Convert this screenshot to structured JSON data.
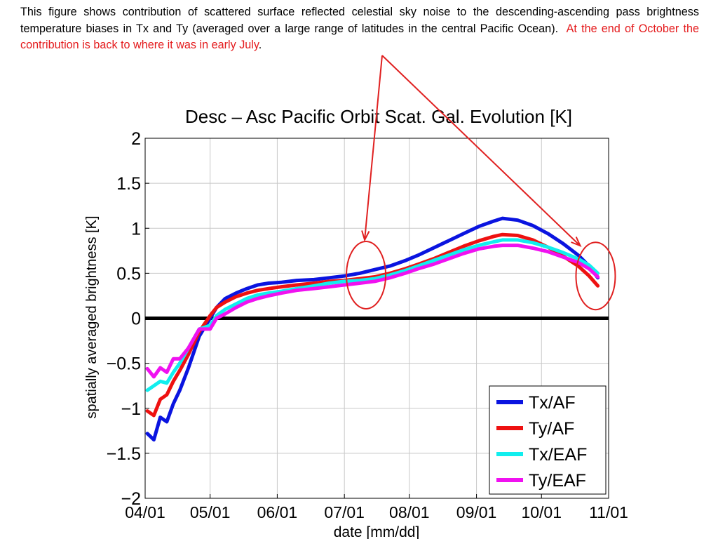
{
  "caption": {
    "text": "This figure shows contribution of scattered surface reflected celestial sky noise to the descending-ascending pass brightness temperature biases in Tx and Ty (averaged over a large range of latitudes in the central Pacific Ocean).",
    "highlight": "At the end of October the contribution is back to where it was in early July",
    "end": ".",
    "highlight_color": "#e41a1c"
  },
  "annotation": {
    "color": "#e02020",
    "circles": [
      {
        "x": "07/11",
        "y": 0.48
      },
      {
        "x": "10/26",
        "y": 0.47
      }
    ]
  },
  "chart_data": {
    "type": "line",
    "title": "Desc – Asc Pacific Orbit Scat. Gal. Evolution [K]",
    "xlabel": "date [mm/dd]",
    "ylabel": "spatially averaged brightness [K]",
    "xticks": [
      "04/01",
      "05/01",
      "06/01",
      "07/01",
      "08/01",
      "09/01",
      "10/01",
      "11/01"
    ],
    "xlim": [
      "04/01",
      "11/01"
    ],
    "yticks": [
      -2,
      -1.5,
      -1,
      -0.5,
      0,
      0.5,
      1,
      1.5,
      2
    ],
    "ytick_labels": [
      "−2",
      "−1.5",
      "−1",
      "−0.5",
      "0",
      "0.5",
      "1",
      "1.5",
      "2"
    ],
    "ylim": [
      -2,
      2
    ],
    "grid": true,
    "legend_position": "bottom-right",
    "reference_line": {
      "y": 0,
      "color": "#000000"
    },
    "x": [
      "04/02",
      "04/05",
      "04/08",
      "04/11",
      "04/14",
      "04/17",
      "04/21",
      "04/26",
      "05/01",
      "05/04",
      "05/08",
      "05/13",
      "05/18",
      "05/23",
      "05/28",
      "06/03",
      "06/10",
      "06/18",
      "06/25",
      "07/01",
      "07/08",
      "07/15",
      "07/22",
      "07/29",
      "08/05",
      "08/12",
      "08/19",
      "08/26",
      "09/02",
      "09/09",
      "09/13",
      "09/20",
      "09/27",
      "10/04",
      "10/11",
      "10/18",
      "10/23",
      "10/27"
    ],
    "series": [
      {
        "name": "Tx/AF",
        "color": "#0a14e0",
        "values": [
          -1.28,
          -1.35,
          -1.1,
          -1.15,
          -0.95,
          -0.8,
          -0.55,
          -0.2,
          0.0,
          0.12,
          0.22,
          0.28,
          0.33,
          0.37,
          0.39,
          0.4,
          0.42,
          0.43,
          0.45,
          0.47,
          0.5,
          0.54,
          0.58,
          0.64,
          0.7,
          0.78,
          0.86,
          0.94,
          1.02,
          1.08,
          1.11,
          1.09,
          1.03,
          0.94,
          0.83,
          0.7,
          0.58,
          0.45
        ]
      },
      {
        "name": "Ty/AF",
        "color": "#ee1111",
        "values": [
          -1.03,
          -1.08,
          -0.9,
          -0.85,
          -0.7,
          -0.58,
          -0.4,
          -0.15,
          0.03,
          0.12,
          0.18,
          0.24,
          0.28,
          0.31,
          0.33,
          0.35,
          0.37,
          0.39,
          0.41,
          0.42,
          0.44,
          0.46,
          0.5,
          0.55,
          0.6,
          0.66,
          0.73,
          0.8,
          0.86,
          0.91,
          0.93,
          0.92,
          0.87,
          0.79,
          0.69,
          0.58,
          0.47,
          0.36
        ]
      },
      {
        "name": "Tx/EAF",
        "color": "#11eeee",
        "values": [
          -0.8,
          -0.75,
          -0.7,
          -0.72,
          -0.6,
          -0.5,
          -0.33,
          -0.12,
          -0.08,
          0.03,
          0.1,
          0.16,
          0.22,
          0.26,
          0.28,
          0.3,
          0.33,
          0.36,
          0.39,
          0.41,
          0.42,
          0.44,
          0.48,
          0.53,
          0.58,
          0.64,
          0.7,
          0.76,
          0.81,
          0.85,
          0.87,
          0.87,
          0.84,
          0.79,
          0.73,
          0.66,
          0.59,
          0.5
        ]
      },
      {
        "name": "Ty/EAF",
        "color": "#f011f0",
        "values": [
          -0.56,
          -0.65,
          -0.55,
          -0.6,
          -0.45,
          -0.45,
          -0.33,
          -0.12,
          -0.12,
          0.0,
          0.05,
          0.12,
          0.18,
          0.22,
          0.25,
          0.28,
          0.31,
          0.33,
          0.35,
          0.37,
          0.39,
          0.41,
          0.45,
          0.5,
          0.55,
          0.6,
          0.66,
          0.72,
          0.77,
          0.8,
          0.81,
          0.81,
          0.78,
          0.74,
          0.68,
          0.62,
          0.55,
          0.46
        ]
      }
    ]
  }
}
